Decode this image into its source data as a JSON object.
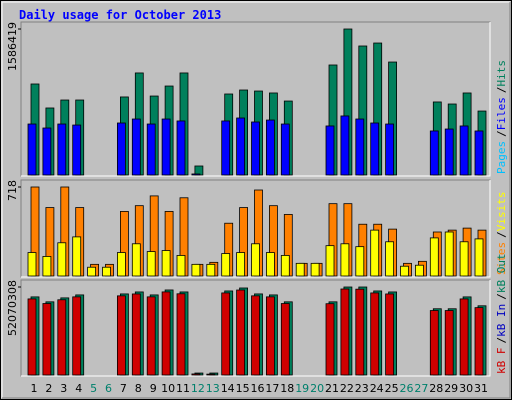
{
  "chart_data": [
    {
      "type": "bar",
      "title": "Daily usage for October 2013",
      "categories": [
        "1",
        "2",
        "3",
        "4",
        "5",
        "6",
        "7",
        "8",
        "9",
        "10",
        "11",
        "12",
        "13",
        "14",
        "15",
        "16",
        "17",
        "18",
        "19",
        "20",
        "21",
        "22",
        "23",
        "24",
        "25",
        "26",
        "27",
        "28",
        "29",
        "30",
        "31"
      ],
      "category_colors": [
        "#000000",
        "#000000",
        "#000000",
        "#000000",
        "#00806c",
        "#00806c",
        "#000000",
        "#000000",
        "#000000",
        "#000000",
        "#000000",
        "#00806c",
        "#00806c",
        "#000000",
        "#000000",
        "#000000",
        "#000000",
        "#000000",
        "#00806c",
        "#00806c",
        "#000000",
        "#000000",
        "#000000",
        "#000000",
        "#000000",
        "#00806c",
        "#00806c",
        "#000000",
        "#000000",
        "#000000",
        "#000000"
      ],
      "ylim": [
        0,
        1586419
      ],
      "yticks": [
        1586419
      ],
      "legend_separator": "/",
      "series": [
        {
          "name": "Pages",
          "color": "#00c0ff",
          "values": [
            null,
            null,
            null,
            null,
            null,
            null,
            null,
            null,
            null,
            null,
            null,
            null,
            null,
            null,
            null,
            null,
            null,
            null,
            null,
            null,
            null,
            null,
            null,
            null,
            null,
            null,
            null,
            null,
            null,
            null,
            null
          ]
        },
        {
          "name": "Files",
          "color": "#0000ff",
          "values": [
            561000,
            518000,
            561000,
            550000,
            0,
            0,
            572000,
            615000,
            561000,
            615000,
            594000,
            22000,
            0,
            594000,
            626000,
            583000,
            604000,
            561000,
            0,
            0,
            540000,
            648000,
            615000,
            572000,
            561000,
            0,
            0,
            486000,
            507000,
            540000,
            486000
          ]
        },
        {
          "name": "Hits",
          "color": "#00805c",
          "values": [
            993000,
            734000,
            820000,
            820000,
            0,
            0,
            853000,
            1112000,
            863000,
            971000,
            1112000,
            108000,
            0,
            885000,
            928000,
            917000,
            896000,
            809000,
            0,
            0,
            1198000,
            1586419,
            1403000,
            1435000,
            1230000,
            0,
            0,
            799000,
            777000,
            896000,
            701000
          ]
        }
      ]
    },
    {
      "type": "bar",
      "ylim": [
        0,
        718
      ],
      "yticks": [
        718
      ],
      "legend_separator": "/",
      "series": [
        {
          "name": "Sites",
          "color": "#ff8000",
          "values": [
            718,
            554,
            718,
            554,
            101,
            101,
            523,
            569,
            647,
            523,
            632,
            101,
            117,
            429,
            554,
            694,
            569,
            499,
            109,
            109,
            585,
            585,
            421,
            421,
            382,
            109,
            125,
            359,
            374,
            390,
            374
          ]
        },
        {
          "name": "Visits",
          "color": "#ffff00",
          "values": [
            195,
            164,
            273,
            320,
            78,
            78,
            195,
            265,
            203,
            211,
            172,
            101,
            101,
            187,
            195,
            265,
            195,
            172,
            109,
            109,
            250,
            265,
            242,
            374,
            281,
            86,
            94,
            312,
            359,
            281,
            304
          ]
        }
      ]
    },
    {
      "type": "bar",
      "ylim": [
        0,
        52070308
      ],
      "yticks": [
        52070308
      ],
      "legend_separator": "/",
      "series": [
        {
          "name": "kB F",
          "color": "#d00000",
          "values": [
            45100000,
            42400000,
            44600000,
            46300000,
            0,
            0,
            46900000,
            48000000,
            46300000,
            49200000,
            48100000,
            1200000,
            1100000,
            48600000,
            50300000,
            46900000,
            46300000,
            42400000,
            0,
            0,
            42300000,
            50900000,
            50800000,
            48600000,
            48000000,
            0,
            0,
            38300000,
            38300000,
            45100000,
            40000000
          ]
        },
        {
          "name": "kB In",
          "color": "#0000c0",
          "values": [
            null,
            null,
            null,
            null,
            null,
            null,
            null,
            null,
            null,
            null,
            null,
            null,
            null,
            null,
            null,
            null,
            null,
            null,
            null,
            null,
            null,
            null,
            null,
            null,
            null,
            null,
            null,
            null,
            null,
            null,
            null
          ]
        },
        {
          "name": "kB Out",
          "color": "#00805c",
          "values": [
            46285000,
            43392000,
            45706000,
            47442000,
            0,
            0,
            48020000,
            49178000,
            47442000,
            50335000,
            49178000,
            1736000,
            1736000,
            49756000,
            51492000,
            48020000,
            47442000,
            43392000,
            0,
            0,
            43392000,
            52070308,
            52070308,
            49756000,
            49178000,
            0,
            0,
            39342000,
            39342000,
            46285000,
            41078000
          ]
        }
      ]
    }
  ]
}
